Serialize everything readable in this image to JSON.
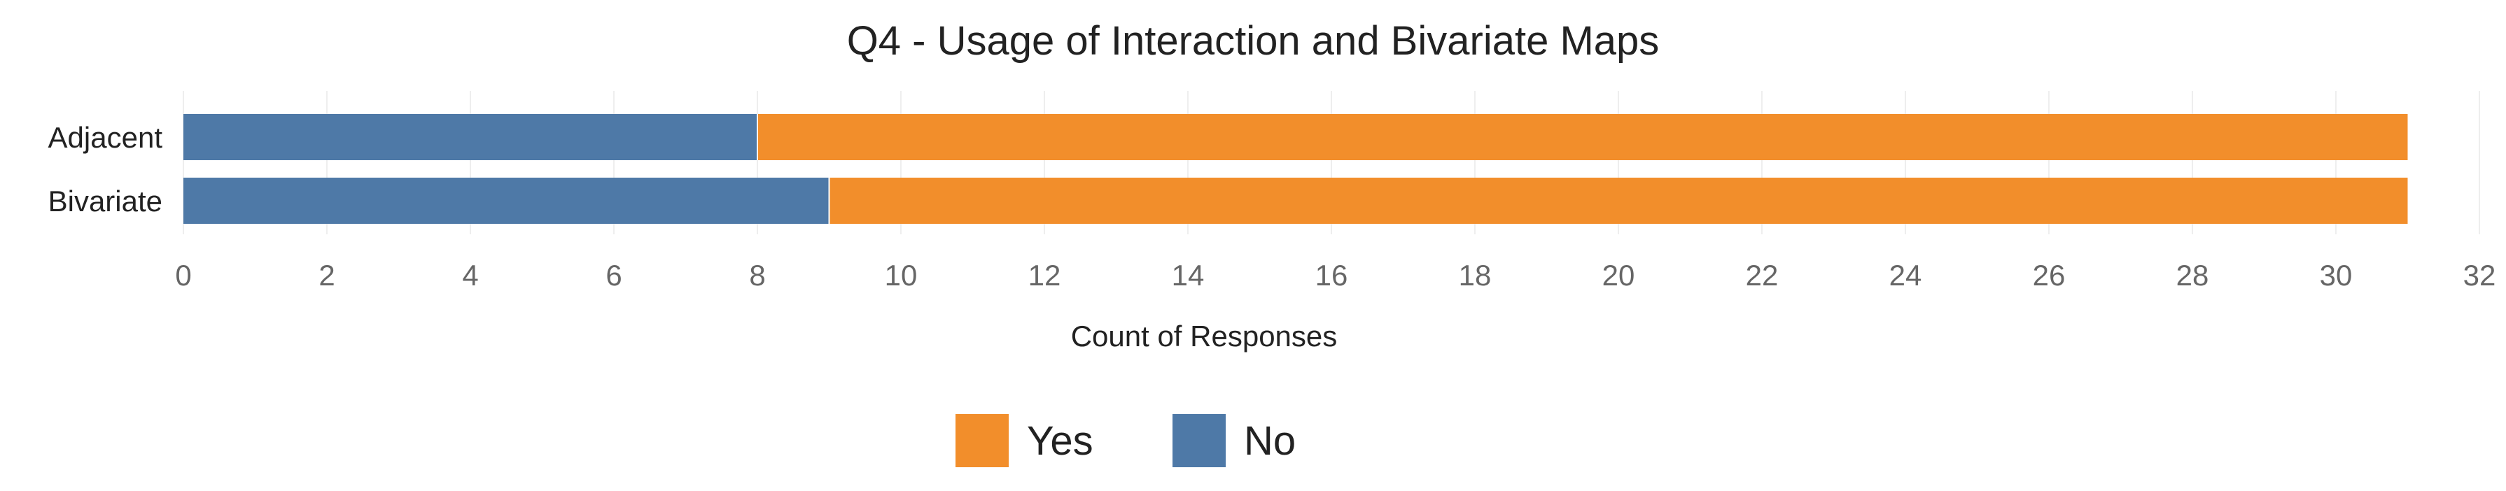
{
  "chart_data": {
    "type": "bar",
    "orientation": "horizontal",
    "stacked": true,
    "title": "Q4 - Usage of Interaction and Bivariate Maps",
    "xlabel": "Count of Responses",
    "ylabel": "",
    "categories": [
      "Adjacent",
      "Bivariate"
    ],
    "series": [
      {
        "name": "No",
        "color": "#4e79a7",
        "values": [
          8,
          9
        ]
      },
      {
        "name": "Yes",
        "color": "#f28e2b",
        "values": [
          23,
          22
        ]
      }
    ],
    "xlim": [
      0,
      32
    ],
    "xticks": [
      "0",
      "2",
      "4",
      "6",
      "8",
      "10",
      "12",
      "14",
      "16",
      "18",
      "20",
      "22",
      "24",
      "26",
      "28",
      "30",
      "32"
    ],
    "grid": true,
    "legend": {
      "placement": "bottom-center",
      "entries": [
        {
          "label": "Yes",
          "color": "#f28e2b"
        },
        {
          "label": "No",
          "color": "#4e79a7"
        }
      ]
    },
    "colors": {
      "text": "#222222",
      "tick_text": "#666666",
      "grid": "#eeeeee"
    }
  }
}
